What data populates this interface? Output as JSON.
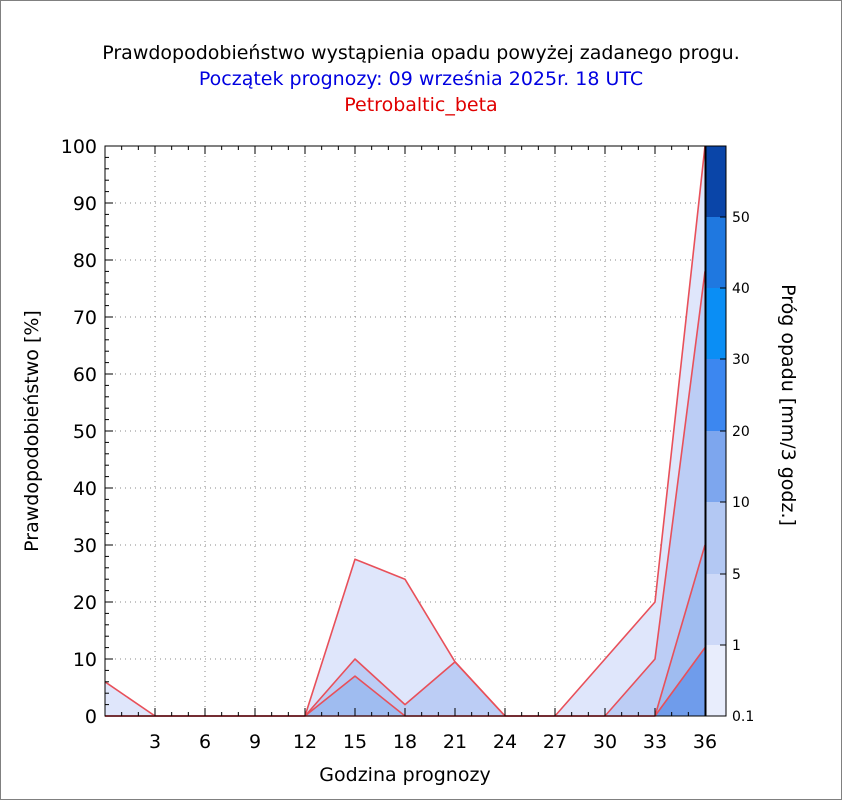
{
  "titles": {
    "main": "Prawdopodobieństwo wystąpienia opadu powyżej zadanego progu.",
    "forecast_start": "Początek prognozy: 09 września 2025r. 18 UTC",
    "model": "Petrobaltic_beta"
  },
  "colors": {
    "title_main": "#000000",
    "title_forecast": "#0000e0",
    "title_model": "#e00000",
    "series_line": "#e8505a",
    "grid": "#808080"
  },
  "chart_data": {
    "type": "area",
    "title": "Prawdopodobieństwo wystąpienia opadu powyżej zadanego progu.",
    "xlabel": "Godzina prognozy",
    "ylabel": "Prawdopodobieństwo [%]",
    "xlim": [
      0,
      36
    ],
    "ylim": [
      0,
      100
    ],
    "xticks": [
      3,
      6,
      9,
      12,
      15,
      18,
      21,
      24,
      27,
      30,
      33,
      36
    ],
    "yticks": [
      0,
      10,
      20,
      30,
      40,
      50,
      60,
      70,
      80,
      90,
      100
    ],
    "grid": true,
    "x": [
      0,
      3,
      6,
      9,
      12,
      15,
      18,
      21,
      24,
      27,
      30,
      33,
      36
    ],
    "series": [
      {
        "threshold": 0.1,
        "color": "#dfe6fb",
        "values": [
          6,
          0,
          0,
          0,
          0,
          27.5,
          24,
          9.5,
          0,
          0,
          10,
          20,
          100
        ]
      },
      {
        "threshold": 1,
        "color": "#bccdf5",
        "values": [
          0,
          0,
          0,
          0,
          0,
          10,
          2,
          9.5,
          0,
          0,
          0,
          10,
          78
        ]
      },
      {
        "threshold": 5,
        "color": "#9fbcf0",
        "values": [
          0,
          0,
          0,
          0,
          0,
          7,
          0,
          0,
          0,
          0,
          0,
          0,
          30
        ]
      },
      {
        "threshold": 10,
        "color": "#6f9ceb",
        "values": [
          0,
          0,
          0,
          0,
          0,
          0,
          0,
          0,
          0,
          0,
          0,
          0,
          12
        ]
      }
    ],
    "colorbar": {
      "title": "Próg opadu [mm/3 godz.]",
      "labels": [
        "0.1",
        "1",
        "5",
        "10",
        "20",
        "30",
        "40",
        "50"
      ],
      "colors": [
        "#e8edfc",
        "#cdd9f8",
        "#b3c8f3",
        "#7da6ee",
        "#3c87f0",
        "#0a8ef5",
        "#1f78e0",
        "#1663cf",
        "#0f52bb",
        "#0a45a8"
      ]
    }
  }
}
